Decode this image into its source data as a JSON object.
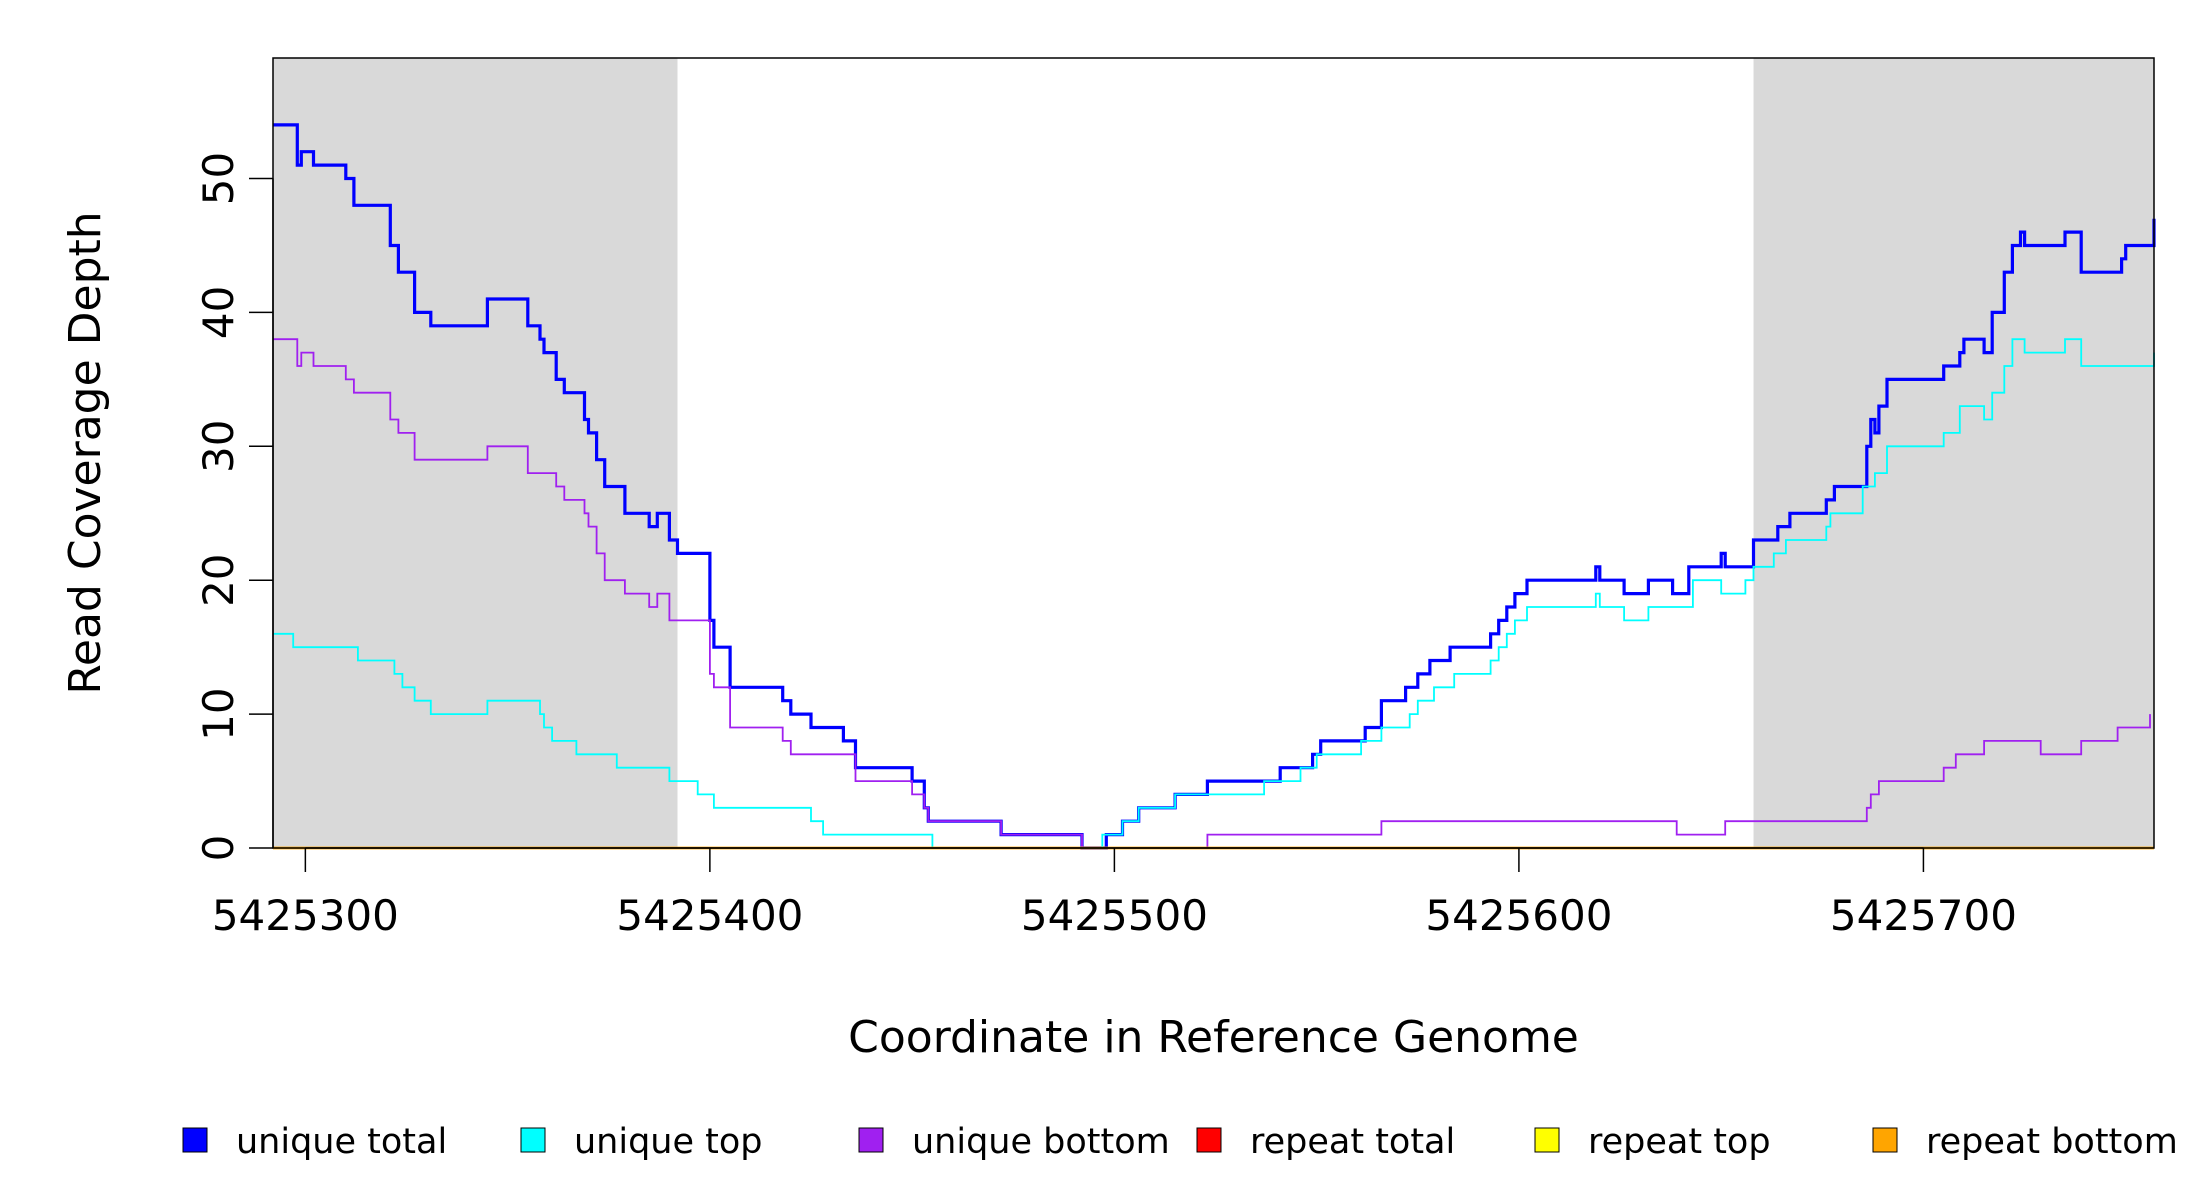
{
  "chart_data": {
    "type": "line",
    "title": "",
    "xlabel": "Coordinate in Reference Genome",
    "ylabel": "Read Coverage Depth",
    "xlim": [
      5425292,
      5425757
    ],
    "ylim": [
      0,
      59
    ],
    "x_ticks": [
      5425300,
      5425400,
      5425500,
      5425600,
      5425700
    ],
    "y_ticks": [
      0,
      10,
      20,
      30,
      40,
      50
    ],
    "grid": false,
    "step": true,
    "shaded_regions": [
      {
        "x": [
          5425292,
          5425392
        ],
        "color": "#d9d9d9"
      },
      {
        "x": [
          5425658,
          5425757
        ],
        "color": "#d9d9d9"
      }
    ],
    "legend_position": "bottom",
    "series": [
      {
        "name": "unique total",
        "color": "#0000ff",
        "points": [
          [
            5425292,
            54
          ],
          [
            5425298,
            51
          ],
          [
            5425299,
            52
          ],
          [
            5425302,
            51
          ],
          [
            5425310,
            50
          ],
          [
            5425312,
            48
          ],
          [
            5425321,
            45
          ],
          [
            5425323,
            43
          ],
          [
            5425327,
            40
          ],
          [
            5425331,
            39
          ],
          [
            5425345,
            41
          ],
          [
            5425355,
            39
          ],
          [
            5425358,
            38
          ],
          [
            5425359,
            37
          ],
          [
            5425362,
            35
          ],
          [
            5425364,
            34
          ],
          [
            5425369,
            32
          ],
          [
            5425370,
            31
          ],
          [
            5425372,
            29
          ],
          [
            5425374,
            27
          ],
          [
            5425379,
            25
          ],
          [
            5425385,
            24
          ],
          [
            5425387,
            25
          ],
          [
            5425390,
            23
          ],
          [
            5425392,
            22
          ],
          [
            5425400,
            17
          ],
          [
            5425401,
            15
          ],
          [
            5425405,
            12
          ],
          [
            5425418,
            11
          ],
          [
            5425420,
            10
          ],
          [
            5425425,
            9
          ],
          [
            5425433,
            8
          ],
          [
            5425436,
            6
          ],
          [
            5425450,
            5
          ],
          [
            5425453,
            3
          ],
          [
            5425454,
            2
          ],
          [
            5425472,
            1
          ],
          [
            5425492,
            0
          ],
          [
            5425498,
            1
          ],
          [
            5425502,
            2
          ],
          [
            5425506,
            3
          ],
          [
            5425515,
            4
          ],
          [
            5425523,
            5
          ],
          [
            5425541,
            6
          ],
          [
            5425549,
            7
          ],
          [
            5425551,
            8
          ],
          [
            5425562,
            9
          ],
          [
            5425566,
            11
          ],
          [
            5425572,
            12
          ],
          [
            5425575,
            13
          ],
          [
            5425578,
            14
          ],
          [
            5425583,
            15
          ],
          [
            5425593,
            16
          ],
          [
            5425595,
            17
          ],
          [
            5425597,
            18
          ],
          [
            5425599,
            19
          ],
          [
            5425602,
            20
          ],
          [
            5425619,
            21
          ],
          [
            5425620,
            20
          ],
          [
            5425626,
            19
          ],
          [
            5425632,
            20
          ],
          [
            5425638,
            19
          ],
          [
            5425642,
            21
          ],
          [
            5425650,
            22
          ],
          [
            5425651,
            21
          ],
          [
            5425658,
            23
          ],
          [
            5425664,
            24
          ],
          [
            5425667,
            25
          ],
          [
            5425676,
            26
          ],
          [
            5425678,
            27
          ],
          [
            5425686,
            30
          ],
          [
            5425687,
            32
          ],
          [
            5425688,
            31
          ],
          [
            5425689,
            33
          ],
          [
            5425691,
            35
          ],
          [
            5425705,
            36
          ],
          [
            5425709,
            37
          ],
          [
            5425710,
            38
          ],
          [
            5425715,
            37
          ],
          [
            5425717,
            40
          ],
          [
            5425720,
            43
          ],
          [
            5425722,
            45
          ],
          [
            5425724,
            46
          ],
          [
            5425725,
            45
          ],
          [
            5425735,
            46
          ],
          [
            5425739,
            43
          ],
          [
            5425749,
            44
          ],
          [
            5425750,
            45
          ],
          [
            5425757,
            47
          ]
        ]
      },
      {
        "name": "unique top",
        "color": "#00ffff",
        "points": [
          [
            5425292,
            16
          ],
          [
            5425297,
            15
          ],
          [
            5425313,
            14
          ],
          [
            5425322,
            13
          ],
          [
            5425324,
            12
          ],
          [
            5425327,
            11
          ],
          [
            5425331,
            10
          ],
          [
            5425345,
            11
          ],
          [
            5425358,
            10
          ],
          [
            5425359,
            9
          ],
          [
            5425361,
            8
          ],
          [
            5425367,
            7
          ],
          [
            5425377,
            6
          ],
          [
            5425390,
            5
          ],
          [
            5425397,
            4
          ],
          [
            5425401,
            3
          ],
          [
            5425425,
            2
          ],
          [
            5425428,
            1
          ],
          [
            5425455,
            0
          ],
          [
            5425497,
            1
          ],
          [
            5425502,
            2
          ],
          [
            5425506,
            3
          ],
          [
            5425515,
            4
          ],
          [
            5425537,
            5
          ],
          [
            5425546,
            6
          ],
          [
            5425550,
            7
          ],
          [
            5425561,
            8
          ],
          [
            5425566,
            9
          ],
          [
            5425573,
            10
          ],
          [
            5425575,
            11
          ],
          [
            5425579,
            12
          ],
          [
            5425584,
            13
          ],
          [
            5425593,
            14
          ],
          [
            5425595,
            15
          ],
          [
            5425597,
            16
          ],
          [
            5425599,
            17
          ],
          [
            5425602,
            18
          ],
          [
            5425619,
            19
          ],
          [
            5425620,
            18
          ],
          [
            5425626,
            17
          ],
          [
            5425632,
            18
          ],
          [
            5425643,
            20
          ],
          [
            5425650,
            19
          ],
          [
            5425656,
            20
          ],
          [
            5425658,
            21
          ],
          [
            5425663,
            22
          ],
          [
            5425666,
            23
          ],
          [
            5425676,
            24
          ],
          [
            5425677,
            25
          ],
          [
            5425685,
            27
          ],
          [
            5425688,
            28
          ],
          [
            5425691,
            30
          ],
          [
            5425705,
            31
          ],
          [
            5425709,
            33
          ],
          [
            5425715,
            32
          ],
          [
            5425717,
            34
          ],
          [
            5425720,
            36
          ],
          [
            5425722,
            38
          ],
          [
            5425725,
            37
          ],
          [
            5425735,
            38
          ],
          [
            5425739,
            36
          ],
          [
            5425757,
            37
          ]
        ]
      },
      {
        "name": "unique bottom",
        "color": "#a020f0",
        "points": [
          [
            5425292,
            38
          ],
          [
            5425298,
            36
          ],
          [
            5425299,
            37
          ],
          [
            5425302,
            36
          ],
          [
            5425310,
            35
          ],
          [
            5425312,
            34
          ],
          [
            5425321,
            32
          ],
          [
            5425323,
            31
          ],
          [
            5425327,
            29
          ],
          [
            5425345,
            30
          ],
          [
            5425355,
            28
          ],
          [
            5425362,
            27
          ],
          [
            5425364,
            26
          ],
          [
            5425369,
            25
          ],
          [
            5425370,
            24
          ],
          [
            5425372,
            22
          ],
          [
            5425374,
            20
          ],
          [
            5425379,
            19
          ],
          [
            5425385,
            18
          ],
          [
            5425387,
            19
          ],
          [
            5425390,
            17
          ],
          [
            5425400,
            13
          ],
          [
            5425401,
            12
          ],
          [
            5425405,
            9
          ],
          [
            5425418,
            8
          ],
          [
            5425420,
            7
          ],
          [
            5425436,
            5
          ],
          [
            5425450,
            4
          ],
          [
            5425453,
            3
          ],
          [
            5425454,
            2
          ],
          [
            5425472,
            1
          ],
          [
            5425492,
            0
          ],
          [
            5425523,
            1
          ],
          [
            5425566,
            2
          ],
          [
            5425639,
            1
          ],
          [
            5425651,
            2
          ],
          [
            5425686,
            3
          ],
          [
            5425687,
            4
          ],
          [
            5425689,
            5
          ],
          [
            5425705,
            6
          ],
          [
            5425708,
            7
          ],
          [
            5425715,
            8
          ],
          [
            5425729,
            7
          ],
          [
            5425739,
            8
          ],
          [
            5425748,
            9
          ],
          [
            5425756,
            10
          ]
        ]
      },
      {
        "name": "repeat total",
        "color": "#ff0000",
        "points": [
          [
            5425292,
            0
          ],
          [
            5425757,
            0
          ]
        ]
      },
      {
        "name": "repeat top",
        "color": "#ffff00",
        "points": [
          [
            5425292,
            0
          ],
          [
            5425757,
            0
          ]
        ]
      },
      {
        "name": "repeat bottom",
        "color": "#ffa500",
        "points": [
          [
            5425292,
            0
          ],
          [
            5425757,
            0
          ]
        ]
      }
    ]
  }
}
